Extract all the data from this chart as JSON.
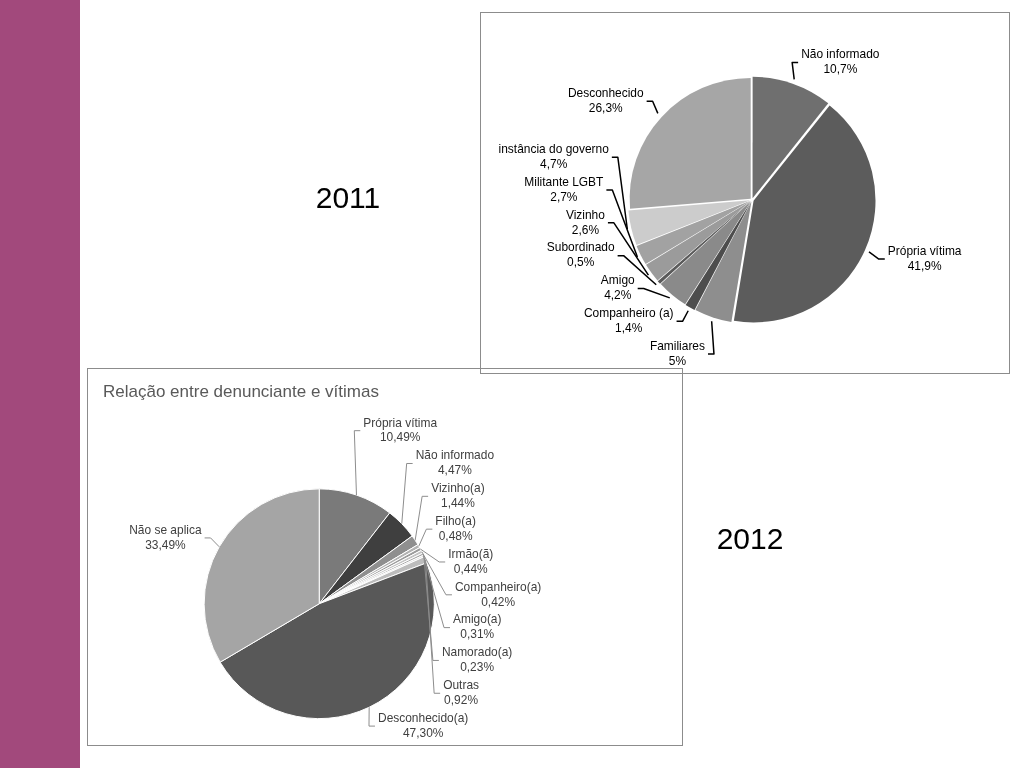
{
  "chart_data": [
    {
      "type": "pie",
      "annotations": [
        "2011"
      ],
      "categories": [
        "Não informado",
        "Própria vítima",
        "Familiares",
        "Companheiro (a)",
        "Amigo",
        "Subordinado",
        "Vizinho",
        "Militante LGBT",
        "instância do governo",
        "Desconhecido"
      ],
      "values": [
        10.7,
        41.9,
        5,
        1.4,
        4.2,
        0.5,
        2.6,
        2.7,
        4.7,
        26.3
      ],
      "value_labels": [
        "10,7%",
        "41,9%",
        "5%",
        "1,4%",
        "4,2%",
        "0,5%",
        "2,6%",
        "2,7%",
        "4,7%",
        "26,3%"
      ],
      "colors": [
        "#6f6f6f",
        "#5c5c5c",
        "#8e8e8e",
        "#4d4d4d",
        "#8a8a8a",
        "#5a5a5a",
        "#9b9b9b",
        "#a2a2a2",
        "#cccccc",
        "#a6a6a6"
      ]
    },
    {
      "type": "pie",
      "title": "Relação entre denunciante e vítimas",
      "annotations": [
        "2012"
      ],
      "categories": [
        "Própria vítima",
        "Não informado",
        "Vizinho(a)",
        "Filho(a)",
        "Irmão(ã)",
        "Companheiro(a)",
        "Amigo(a)",
        "Namorado(a)",
        "Outras",
        "Desconhecido(a)",
        "Não se aplica"
      ],
      "values": [
        10.49,
        4.47,
        1.44,
        0.48,
        0.44,
        0.42,
        0.31,
        0.23,
        0.92,
        47.3,
        33.49
      ],
      "value_labels": [
        "10,49%",
        "4,47%",
        "1,44%",
        "0,48%",
        "0,44%",
        "0,42%",
        "0,31%",
        "0,23%",
        "0,92%",
        "47,30%",
        "33,49%"
      ],
      "colors": [
        "#7a7a7a",
        "#3f3f3f",
        "#8f8f8f",
        "#b3b3b3",
        "#9c9c9c",
        "#c4c4c4",
        "#a9a9a9",
        "#d4d4d4",
        "#bdbdbd",
        "#585858",
        "#a5a5a5"
      ]
    }
  ]
}
